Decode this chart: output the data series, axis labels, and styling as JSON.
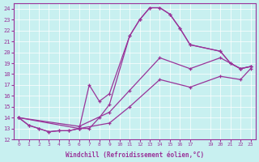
{
  "xlabel": "Windchill (Refroidissement éolien,°C)",
  "bg_color": "#c8f0f0",
  "line_color": "#993399",
  "xlim": [
    -0.5,
    23.5
  ],
  "ylim": [
    12,
    24.5
  ],
  "xticks": [
    0,
    1,
    2,
    3,
    4,
    5,
    6,
    7,
    8,
    9,
    10,
    11,
    12,
    13,
    14,
    15,
    16,
    17,
    19,
    20,
    21,
    22,
    23
  ],
  "yticks": [
    12,
    13,
    14,
    15,
    16,
    17,
    18,
    19,
    20,
    21,
    22,
    23,
    24
  ],
  "series": [
    {
      "x": [
        0,
        1,
        2,
        3,
        4,
        5,
        6,
        7,
        8,
        9,
        11,
        12,
        13,
        14,
        15,
        16,
        17,
        20,
        21,
        22,
        23
      ],
      "y": [
        14.0,
        13.3,
        13.0,
        12.7,
        12.8,
        12.8,
        13.0,
        13.0,
        14.0,
        15.2,
        21.5,
        23.0,
        24.1,
        24.1,
        23.5,
        22.2,
        20.7,
        20.1,
        19.0,
        18.5,
        18.7
      ]
    },
    {
      "x": [
        0,
        1,
        2,
        3,
        4,
        5,
        6,
        7,
        8,
        9,
        11,
        12,
        13,
        14,
        15,
        16,
        17,
        20,
        21,
        22,
        23
      ],
      "y": [
        14.0,
        13.3,
        13.0,
        12.7,
        12.8,
        12.8,
        13.0,
        17.0,
        15.5,
        16.2,
        21.5,
        23.0,
        24.1,
        24.1,
        23.5,
        22.2,
        20.7,
        20.1,
        19.0,
        18.5,
        18.7
      ]
    },
    {
      "x": [
        0,
        6,
        9,
        11,
        14,
        17,
        20,
        22,
        23
      ],
      "y": [
        14.0,
        13.2,
        14.5,
        16.5,
        19.5,
        18.5,
        19.5,
        18.5,
        18.7
      ]
    },
    {
      "x": [
        0,
        6,
        9,
        11,
        14,
        17,
        20,
        22,
        23
      ],
      "y": [
        14.0,
        13.0,
        13.5,
        15.0,
        17.5,
        16.8,
        17.8,
        17.5,
        18.5
      ]
    }
  ]
}
